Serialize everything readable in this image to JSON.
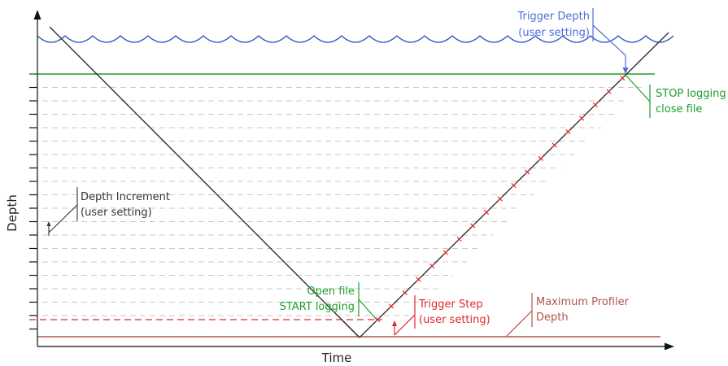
{
  "axes": {
    "x_label": "Time",
    "y_label": "Depth"
  },
  "annotations": {
    "trigger_depth": {
      "line1": "Trigger Depth",
      "line2": "(user setting)"
    },
    "stop_logging": {
      "line1": "STOP logging",
      "line2": "close file"
    },
    "depth_increment": {
      "line1": "Depth Increment",
      "line2": "(user setting)"
    },
    "open_file": {
      "line1": "Open file",
      "line2": "START logging"
    },
    "trigger_step": {
      "line1": "Trigger Step",
      "line2": "(user setting)"
    },
    "max_depth": {
      "line1": "Maximum Profiler",
      "line2": "Depth"
    }
  },
  "colors": {
    "axis": "#111111",
    "water_surface": "#2f57c4",
    "trigger_depth": "#4a6fd6",
    "stop_logging": "#1e9e2b",
    "trigger_step": "#e0282d",
    "max_depth": "#b0554a",
    "profile_path": "#333333",
    "increment_lines": "#c8c8c8",
    "text_dark": "#333333"
  }
}
